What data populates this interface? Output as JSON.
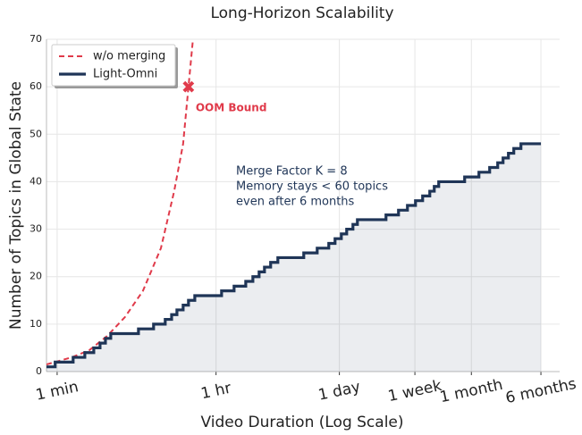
{
  "chart_data": {
    "type": "line",
    "title": "Long-Horizon Scalability",
    "xlabel": "Video Duration (Log Scale)",
    "ylabel": "Number of Topics in Global State",
    "xscale": "log",
    "xlim": [
      0.76,
      420000
    ],
    "ylim": [
      0,
      70
    ],
    "xticks": [
      {
        "value": 1,
        "label": "1 min"
      },
      {
        "value": 60,
        "label": "1 hr"
      },
      {
        "value": 1440,
        "label": "1 day"
      },
      {
        "value": 10080,
        "label": "1 week"
      },
      {
        "value": 43200,
        "label": "1 month"
      },
      {
        "value": 259200,
        "label": "6 months"
      }
    ],
    "yticks": [
      0,
      10,
      20,
      30,
      40,
      50,
      60,
      70
    ],
    "grid": true,
    "legend": "upper left",
    "series": [
      {
        "name": "w/o merging",
        "color": "#e03a4a",
        "style": "dashed",
        "x": [
          0.76,
          1.45,
          2.29,
          3.63,
          5.75,
          9.12,
          14.5,
          20.4,
          25.7,
          29.5,
          33.1
        ],
        "values": [
          1.5,
          3,
          4.5,
          7.5,
          11.5,
          17,
          26,
          38,
          48,
          60,
          70
        ]
      },
      {
        "name": "Light-Omni",
        "color": "#1f3557",
        "style": "step",
        "x": [
          0.76,
          0.95,
          1.51,
          2.04,
          2.57,
          3.02,
          3.47,
          3.98,
          8.13,
          12.0,
          16.2,
          19.1,
          21.9,
          25.7,
          29.5,
          34.7,
          69.2,
          95.5,
          129,
          155,
          182,
          209,
          245,
          295,
          575,
          813,
          1096,
          1288,
          1514,
          1738,
          2042,
          2291,
          4786,
          6607,
          8318,
          10233,
          12303,
          14791,
          16596,
          18621,
          36308,
          52481,
          69183,
          85114,
          97724,
          112202,
          128825,
          154882,
          259200
        ],
        "values": [
          1,
          2,
          3,
          4,
          5,
          6,
          7,
          8,
          9,
          10,
          11,
          12,
          13,
          14,
          15,
          16,
          17,
          18,
          19,
          20,
          21,
          22,
          23,
          24,
          25,
          26,
          27,
          28,
          29,
          30,
          31,
          32,
          33,
          34,
          35,
          36,
          37,
          38,
          39,
          40,
          41,
          42,
          43,
          44,
          45,
          46,
          47,
          48,
          48
        ]
      }
    ],
    "oom": {
      "x": 29.5,
      "y": 60,
      "label": "OOM Bound"
    },
    "annotation": [
      "Merge Factor K = 8",
      "Memory stays  < 60 topics",
      "even after 6 months"
    ]
  }
}
